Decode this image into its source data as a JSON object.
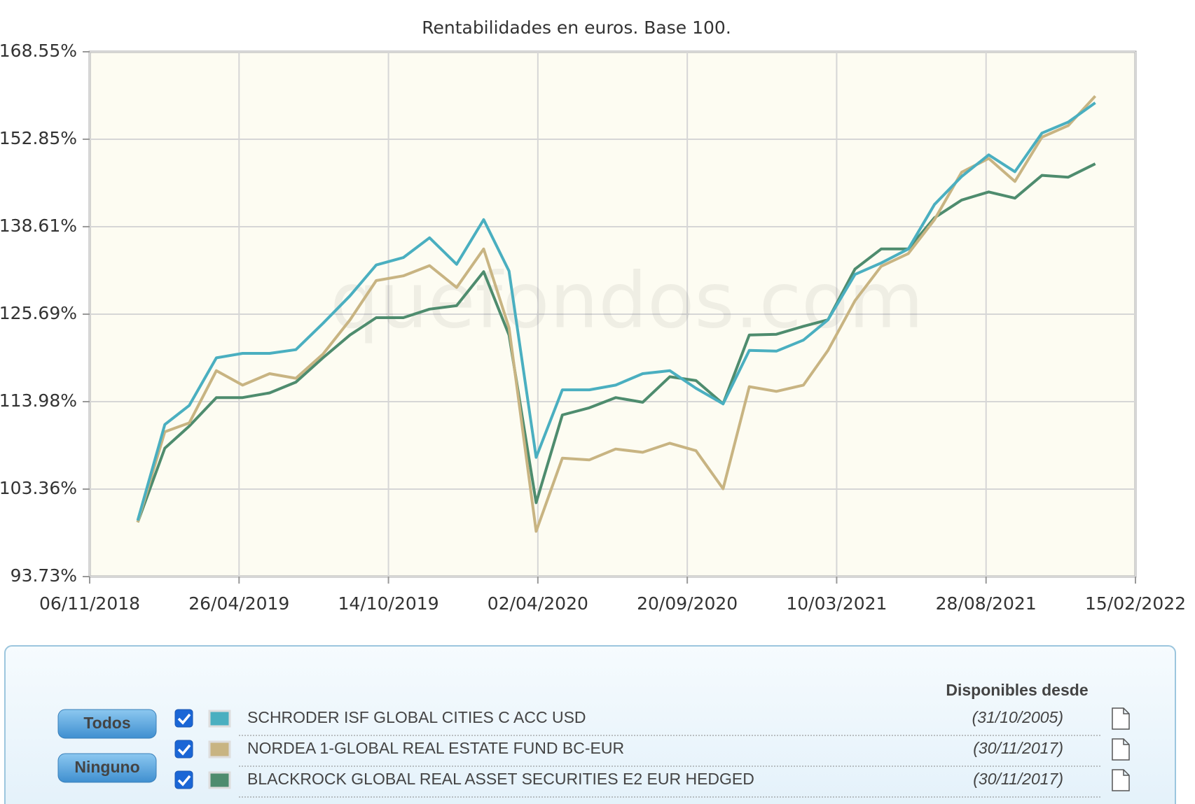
{
  "chart_data": {
    "type": "line",
    "title": "Rentabilidades en euros. Base 100.",
    "watermark": "quefondos.com",
    "log_y": true,
    "grid": true,
    "x": [
      "2018-12-31",
      "2019-01-31",
      "2019-02-28",
      "2019-03-31",
      "2019-04-30",
      "2019-05-31",
      "2019-06-30",
      "2019-07-31",
      "2019-08-31",
      "2019-09-30",
      "2019-10-31",
      "2019-11-30",
      "2019-12-31",
      "2020-01-31",
      "2020-02-29",
      "2020-03-31",
      "2020-04-30",
      "2020-05-31",
      "2020-06-30",
      "2020-07-31",
      "2020-08-31",
      "2020-09-30",
      "2020-10-31",
      "2020-11-30",
      "2020-12-31",
      "2021-01-31",
      "2021-02-28",
      "2021-03-31",
      "2021-04-30",
      "2021-05-31",
      "2021-06-30",
      "2021-07-31",
      "2021-08-31",
      "2021-09-30",
      "2021-10-31",
      "2021-11-30",
      "2021-12-31"
    ],
    "xlim": [
      "2018-11-06",
      "2022-02-15"
    ],
    "xticks": [
      {
        "value": "2018-11-06",
        "label": "06/11/2018"
      },
      {
        "value": "2019-04-26",
        "label": "26/04/2019"
      },
      {
        "value": "2019-10-14",
        "label": "14/10/2019"
      },
      {
        "value": "2020-04-02",
        "label": "02/04/2020"
      },
      {
        "value": "2020-09-20",
        "label": "20/09/2020"
      },
      {
        "value": "2021-03-10",
        "label": "10/03/2021"
      },
      {
        "value": "2021-08-28",
        "label": "28/08/2021"
      },
      {
        "value": "2022-02-15",
        "label": "15/02/2022"
      }
    ],
    "ylim": [
      93.73,
      168.55
    ],
    "yticks": [
      {
        "value": 93.73,
        "label": "93.73%"
      },
      {
        "value": 103.36,
        "label": "103.36%"
      },
      {
        "value": 113.98,
        "label": "113.98%"
      },
      {
        "value": 125.69,
        "label": "125.69%"
      },
      {
        "value": 138.61,
        "label": "138.61%"
      },
      {
        "value": 152.85,
        "label": "152.85%"
      },
      {
        "value": 168.55,
        "label": "168.55%"
      }
    ],
    "series": [
      {
        "name": "SCHRODER ISF GLOBAL CITIES C ACC USD",
        "color": "#4aafc0",
        "since": "(31/10/2005)",
        "checked": true,
        "values": [
          99.8,
          111.1,
          113.5,
          119.7,
          120.3,
          120.3,
          120.8,
          124.4,
          128.3,
          132.8,
          133.9,
          136.9,
          132.9,
          139.7,
          131.9,
          107.1,
          115.5,
          115.5,
          116.1,
          117.6,
          118.0,
          115.7,
          113.7,
          120.7,
          120.6,
          122.1,
          124.9,
          131.4,
          133.1,
          135.2,
          142.1,
          146.6,
          150.2,
          147.4,
          153.9,
          155.8,
          159.2
        ]
      },
      {
        "name": "NORDEA 1-GLOBAL REAL ESTATE FUND BC-EUR",
        "color": "#c8b482",
        "since": "(30/11/2017)",
        "checked": true,
        "values": [
          99.6,
          110.2,
          111.3,
          118.0,
          116.1,
          117.6,
          117.0,
          120.2,
          124.9,
          130.5,
          131.2,
          132.7,
          129.5,
          135.2,
          123.8,
          98.6,
          107.0,
          106.8,
          108.1,
          107.7,
          108.8,
          107.9,
          103.4,
          115.9,
          115.3,
          116.1,
          120.7,
          127.6,
          132.6,
          134.5,
          139.7,
          147.3,
          149.6,
          145.8,
          153.2,
          155.2,
          160.4
        ]
      },
      {
        "name": "BLACKROCK GLOBAL REAL ASSET SECURITIES E2 EUR HEDGED",
        "color": "#4e8c6e",
        "since": "(30/11/2017)",
        "checked": true,
        "values": [
          99.6,
          108.2,
          110.9,
          114.5,
          114.5,
          115.1,
          116.5,
          119.7,
          122.8,
          125.2,
          125.2,
          126.4,
          126.9,
          131.8,
          122.8,
          101.8,
          112.3,
          113.2,
          114.5,
          113.9,
          117.2,
          116.7,
          113.7,
          122.8,
          122.9,
          124.0,
          124.9,
          132.2,
          135.2,
          135.2,
          140.0,
          142.8,
          144.1,
          143.1,
          146.8,
          146.5,
          148.7
        ]
      }
    ],
    "legend": {
      "header": "Disponibles desde",
      "buttons": [
        "Todos",
        "Ninguno"
      ]
    }
  }
}
